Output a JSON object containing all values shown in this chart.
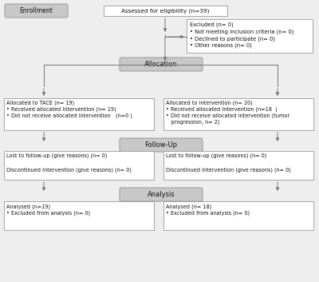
{
  "bg_color": "#eeeeee",
  "box_bg_white": "#ffffff",
  "box_bg_gray": "#c8c8c8",
  "border_color": "#999999",
  "arrow_color": "#777777",
  "enrollment_label": "Enrollment",
  "allocation_label": "Allocation",
  "followup_label": "Follow-Up",
  "analysis_label": "Analysis",
  "assessed_text": "Assessed for eligibility (n=39)",
  "excluded_text": "Excluded (n= 0)\n• Not meeting inclusion criteria (n= 0)\n• Declined to participate (n= 0)\n• Other reasons (n= 0)",
  "left_alloc_text": "Allocated to TACE (n= 19)\n• Received allocated intervention (n= 19)\n• Did not receive allocated intervention   (n=0 )",
  "right_alloc_text": "Allocated to intervention (n= 20)\n• Received allocated intervention (n=18  )\n• Did not receive allocated intervention (tumor\n   progression, n= 2)",
  "left_followup_text": "Lost to follow-up (give reasons) (n= 0)\n\nDiscontinued intervention (give reasons) (n= 0)",
  "right_followup_text": "Lost to follow-up (give reasons) (n= 0)\n\nDiscontinued intervention (give reasons) (n= 0)",
  "left_analysis_text": "Analysed (n=19)\n• Excluded from analysis (n= 0)",
  "right_analysis_text": "Analysed (n= 18)\n• Excluded from analysis (n= 0)"
}
